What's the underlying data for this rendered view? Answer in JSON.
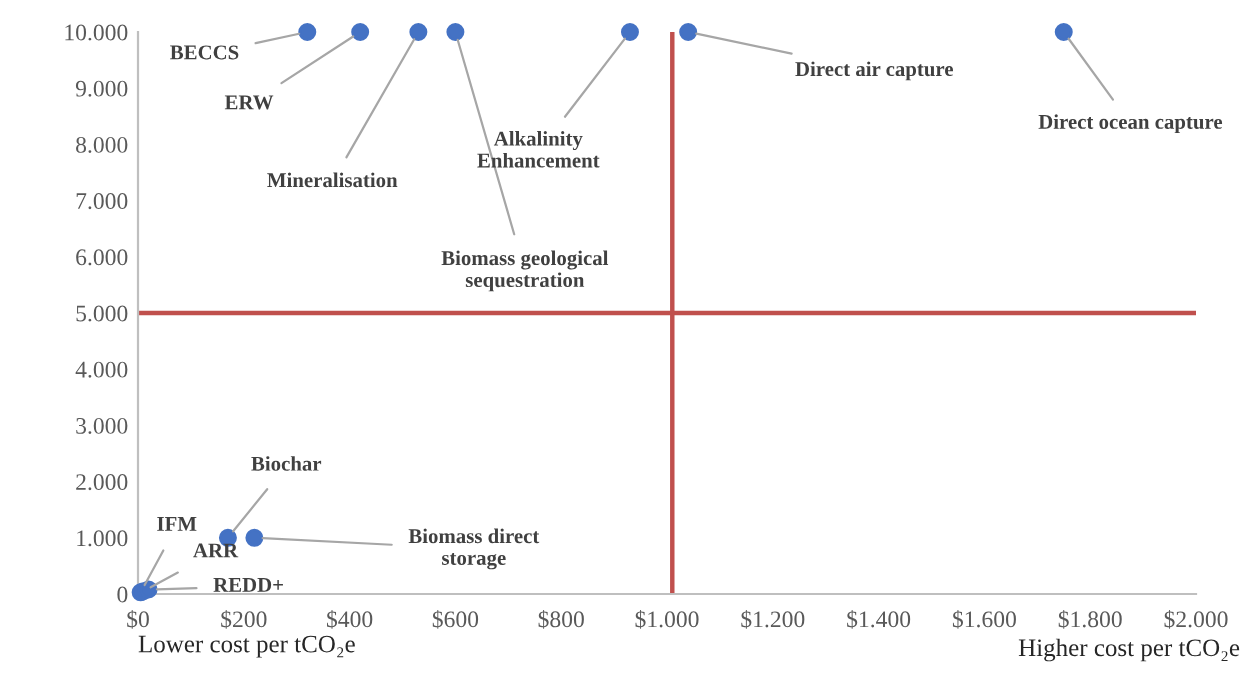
{
  "chart_data": {
    "type": "scatter",
    "x": [
      320,
      420,
      530,
      600,
      930,
      1040,
      1750,
      170,
      220,
      5,
      10,
      20
    ],
    "values": [
      10000,
      10000,
      10000,
      10000,
      10000,
      10000,
      10000,
      1000,
      1000,
      30,
      50,
      80
    ],
    "color": "#4472c4",
    "marker": "circle",
    "xlim": [
      0,
      2000
    ],
    "ylim": [
      0,
      10000
    ],
    "xticks": [
      {
        "value": 0,
        "label": "$0"
      },
      {
        "value": 200,
        "label": "$200"
      },
      {
        "value": 400,
        "label": "$400"
      },
      {
        "value": 600,
        "label": "$600"
      },
      {
        "value": 800,
        "label": "$800"
      },
      {
        "value": 1000,
        "label": "$1.000"
      },
      {
        "value": 1200,
        "label": "$1.200"
      },
      {
        "value": 1400,
        "label": "$1.400"
      },
      {
        "value": 1600,
        "label": "$1.600"
      },
      {
        "value": 1800,
        "label": "$1.800"
      },
      {
        "value": 2000,
        "label": "$2.000"
      }
    ],
    "yticks": [
      0,
      {
        "value": 1000,
        "label": "1.000"
      },
      {
        "value": 2000,
        "label": "2.000"
      },
      {
        "value": 3000,
        "label": "3.000"
      },
      {
        "value": 4000,
        "label": "4.000"
      },
      {
        "value": 5000,
        "label": "5.000"
      },
      {
        "value": 6000,
        "label": "6.000"
      },
      {
        "value": 7000,
        "label": "7.000"
      },
      {
        "value": 8000,
        "label": "8.000"
      },
      {
        "value": 9000,
        "label": "9.000"
      },
      {
        "value": 10000,
        "label": "10.000"
      }
    ],
    "xlabel": "Lower cost per tCO₂e",
    "grid": false,
    "ref_lines": [
      {
        "axis": "x",
        "value": 1010,
        "color": "#c0504d"
      },
      {
        "axis": "y",
        "value": 5000,
        "color": "#c0504d"
      }
    ],
    "annotations": [
      {
        "text": "BECCS",
        "x": 320,
        "y": 10000
      },
      {
        "text": "ERW",
        "x": 420,
        "y": 10000
      },
      {
        "text": "Mineralisation",
        "x": 530,
        "y": 10000
      },
      {
        "text": "Biomass geological\nsequestration",
        "x": 600,
        "y": 10000
      },
      {
        "text": "Alkalinity\nEnhancement",
        "x": 930,
        "y": 10000
      },
      {
        "text": "Direct air capture",
        "x": 1040,
        "y": 10000
      },
      {
        "text": "Direct ocean capture",
        "x": 1750,
        "y": 10000
      },
      {
        "text": "Biochar",
        "x": 170,
        "y": 1000
      },
      {
        "text": "Biomass direct\nstorage",
        "x": 220,
        "y": 1000
      },
      {
        "text": "IFM",
        "x": 5,
        "y": 30
      },
      {
        "text": "ARR",
        "x": 10,
        "y": 50
      },
      {
        "text": "REDD+",
        "x": 20,
        "y": 80
      },
      "Higher cost per tCO₂e"
    ]
  }
}
